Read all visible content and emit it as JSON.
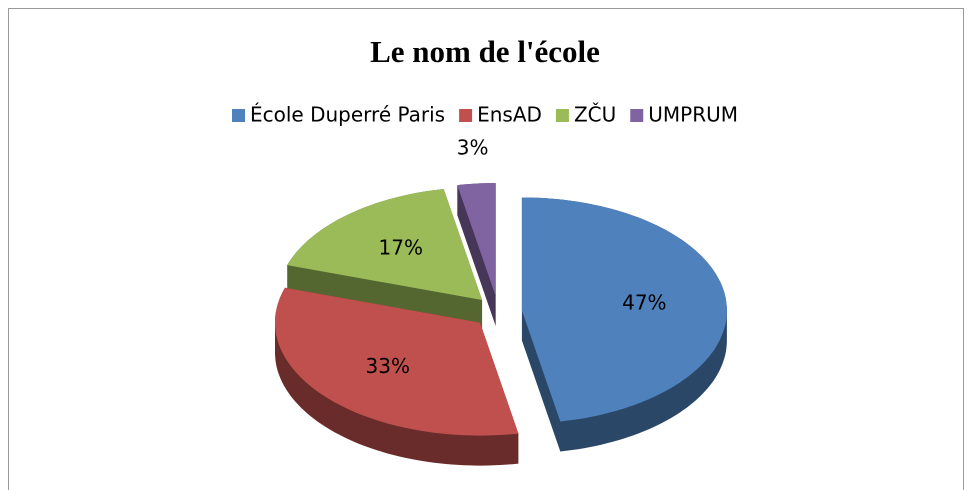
{
  "chart_data": {
    "type": "pie3d",
    "title": "Le nom de l'école",
    "categories": [
      "École Duperré Paris",
      "EnsAD",
      "ZČU",
      "UMPRUM"
    ],
    "values": [
      47,
      33,
      17,
      3
    ],
    "value_labels": [
      "47%",
      "33%",
      "17%",
      "3%"
    ],
    "colors": [
      "#4f81bd",
      "#c0504d",
      "#9bbb59",
      "#8064a2"
    ],
    "legend": "top"
  }
}
